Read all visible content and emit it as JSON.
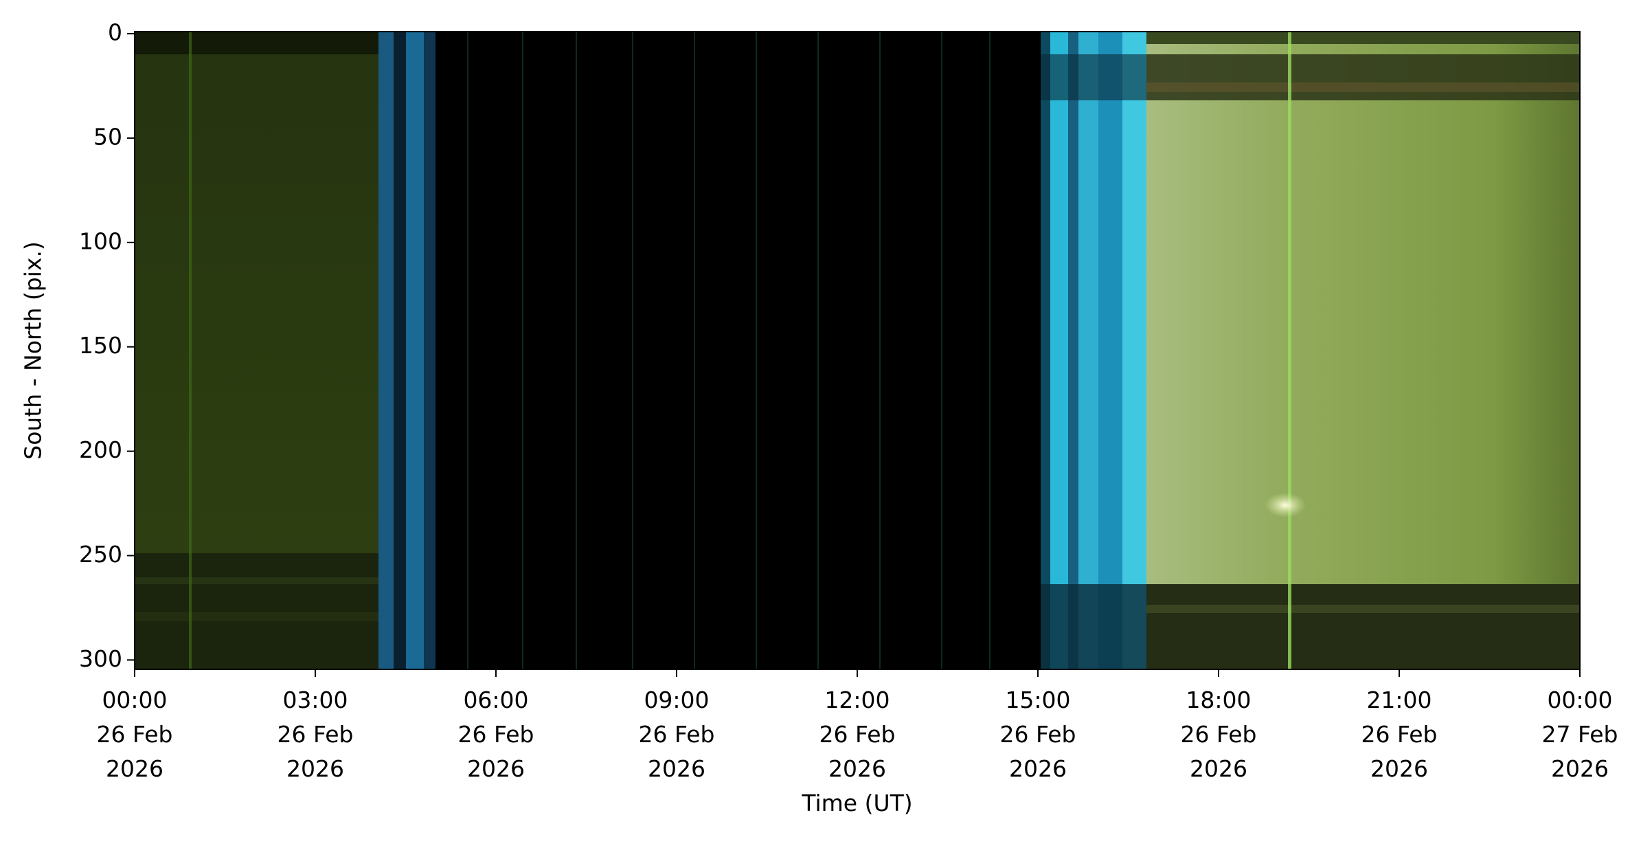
{
  "chart_data": {
    "type": "image",
    "x_label": "Time (UT)",
    "y_label": "South - North (pix.)",
    "xlim": [
      "2026-02-26T00:00",
      "2026-02-27T00:00"
    ],
    "xticks": [
      {
        "value": "2026-02-26T00:00",
        "label": "00:00\n26 Feb\n2026"
      },
      {
        "value": "2026-02-26T03:00",
        "label": "03:00\n26 Feb\n2026"
      },
      {
        "value": "2026-02-26T06:00",
        "label": "06:00\n26 Feb\n2026"
      },
      {
        "value": "2026-02-26T09:00",
        "label": "09:00\n26 Feb\n2026"
      },
      {
        "value": "2026-02-26T12:00",
        "label": "12:00\n26 Feb\n2026"
      },
      {
        "value": "2026-02-26T15:00",
        "label": "15:00\n26 Feb\n2026"
      },
      {
        "value": "2026-02-26T18:00",
        "label": "18:00\n26 Feb\n2026"
      },
      {
        "value": "2026-02-26T21:00",
        "label": "21:00\n26 Feb\n2026"
      },
      {
        "value": "2026-02-27T00:00",
        "label": "00:00\n27 Feb\n2026"
      }
    ],
    "ylim": [
      304.5,
      -1
    ],
    "yticks": [
      0,
      50,
      100,
      150,
      200,
      250,
      300
    ]
  }
}
